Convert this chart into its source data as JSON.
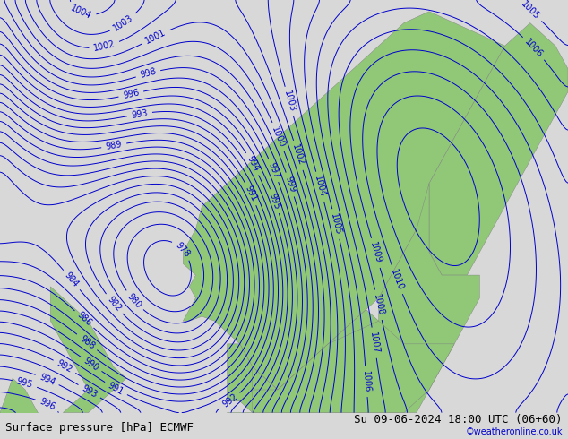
{
  "title_left": "Surface pressure [hPa] ECMWF",
  "title_right": "Su 09-06-2024 18:00 UTC (06+60)",
  "copyright": "©weatheronline.co.uk",
  "background_color": "#d8d8d8",
  "land_color": "#90c878",
  "contour_color_blue": "#0000cc",
  "contour_color_red": "#cc0000",
  "contour_color_black": "#000000",
  "bottom_bar_color": "#c8c8c8",
  "pressure_min": 960,
  "pressure_max": 1020,
  "pressure_step": 1,
  "label_fontsize": 7,
  "title_fontsize": 9,
  "figwidth": 6.34,
  "figheight": 4.9,
  "dpi": 100
}
